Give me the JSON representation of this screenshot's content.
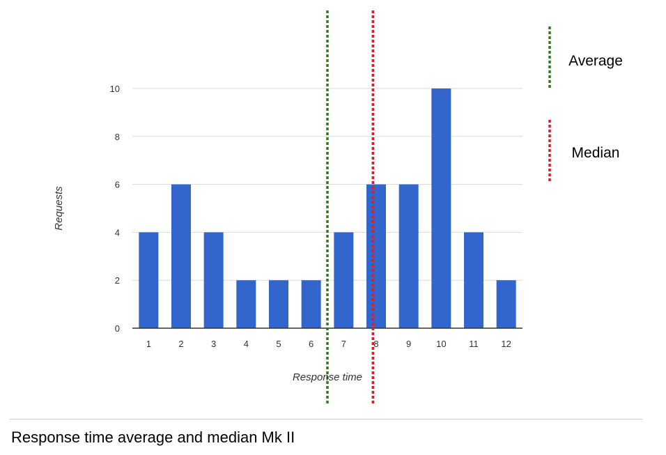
{
  "chart_data": {
    "type": "bar",
    "categories": [
      "1",
      "2",
      "3",
      "4",
      "5",
      "6",
      "7",
      "8",
      "9",
      "10",
      "11",
      "12"
    ],
    "values": [
      4,
      6,
      4,
      2,
      2,
      2,
      4,
      6,
      6,
      10,
      4,
      2
    ],
    "xlabel": "Response time",
    "ylabel": "Requests",
    "ylim": [
      0,
      10
    ],
    "yticks": [
      0,
      2,
      4,
      6,
      8,
      10
    ],
    "grid": true,
    "bar_color": "#3366cc",
    "reference_lines": [
      {
        "name": "Average",
        "x": 6.5,
        "color": "#2e7d1a",
        "style": "dashed"
      },
      {
        "name": "Median",
        "x": 7.9,
        "color": "#d0212b",
        "style": "dashed"
      }
    ],
    "legend_position": "right"
  },
  "caption": "Response time average and median Mk II"
}
